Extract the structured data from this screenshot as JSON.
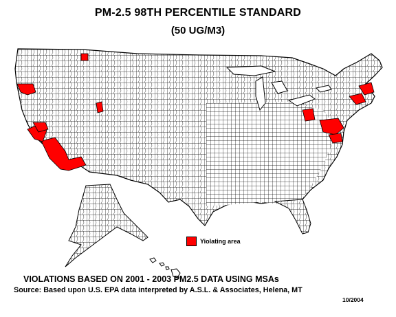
{
  "title": "PM-2.5 98TH PERCENTILE STANDARD",
  "subtitle": "(50 UG/M3)",
  "legend": {
    "label": "Yiolating area",
    "color": "#ff0000"
  },
  "caption": "VIOLATIONS BASED ON 2001 - 2003 PM2.5 DATA USING MSAs",
  "source": "Source:  Based upon U.S. EPA data interpreted by A.S.L. & Associates, Helena, MT",
  "date": "10/2004",
  "colors": {
    "violating": "#ff0000",
    "county_fill": "#ffffff",
    "border": "#000000"
  }
}
